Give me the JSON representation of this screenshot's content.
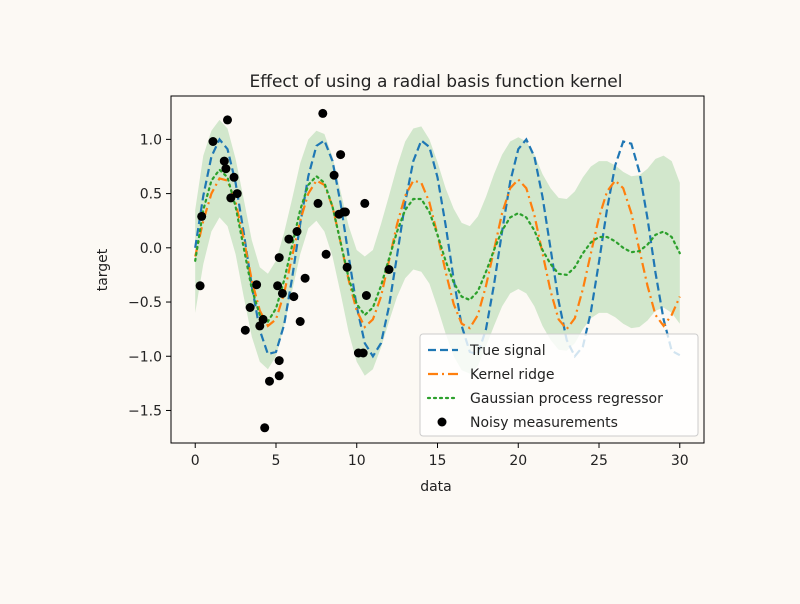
{
  "chart_data": {
    "type": "line",
    "title": "Effect of using a radial basis function kernel",
    "xlabel": "data",
    "ylabel": "target",
    "xlim": [
      -1.5,
      31.5
    ],
    "ylim": [
      -1.8,
      1.4
    ],
    "x_ticks": [
      0,
      5,
      10,
      15,
      20,
      25,
      30
    ],
    "x_tick_labels": [
      "0",
      "5",
      "10",
      "15",
      "20",
      "25",
      "30"
    ],
    "y_ticks": [
      -1.5,
      -1.0,
      -0.5,
      0.0,
      0.5,
      1.0
    ],
    "y_tick_labels": [
      "−1.5",
      "−1.0",
      "−0.5",
      "0.0",
      "0.5",
      "1.0"
    ],
    "grid": false,
    "legend_position": "lower right",
    "series": [
      {
        "name": "True signal",
        "color": "#1f77b4",
        "style": "dashed",
        "x": [
          0.0,
          0.5,
          1.0,
          1.5,
          2.0,
          2.5,
          3.0,
          3.5,
          4.0,
          4.5,
          5.0,
          5.5,
          6.0,
          6.5,
          7.0,
          7.5,
          8.0,
          8.5,
          9.0,
          9.5,
          10.0,
          10.5,
          11.0,
          11.5,
          12.0,
          12.5,
          13.0,
          13.5,
          14.0,
          14.5,
          15.0,
          15.5,
          16.0,
          16.5,
          17.0,
          17.5,
          18.0,
          18.5,
          19.0,
          19.5,
          20.0,
          20.5,
          21.0,
          21.5,
          22.0,
          22.5,
          23.0,
          23.5,
          24.0,
          24.5,
          25.0,
          25.5,
          26.0,
          26.5,
          27.0,
          27.5,
          28.0,
          28.5,
          29.0,
          29.5,
          30.0
        ],
        "y": [
          0.0,
          0.48,
          0.84,
          1.0,
          0.91,
          0.6,
          0.14,
          -0.35,
          -0.76,
          -0.98,
          -0.96,
          -0.71,
          -0.28,
          0.22,
          0.66,
          0.94,
          0.99,
          0.8,
          0.41,
          -0.08,
          -0.54,
          -0.88,
          -1.0,
          -0.88,
          -0.54,
          -0.07,
          0.42,
          0.8,
          0.99,
          0.93,
          0.65,
          0.21,
          -0.29,
          -0.72,
          -0.96,
          -0.98,
          -0.75,
          -0.34,
          0.15,
          0.61,
          0.91,
          1.0,
          0.84,
          0.47,
          -0.01,
          -0.49,
          -0.85,
          -1.0,
          -0.91,
          -0.59,
          -0.13,
          0.36,
          0.76,
          0.98,
          0.96,
          0.7,
          0.27,
          -0.23,
          -0.66,
          -0.95,
          -0.99
        ]
      },
      {
        "name": "Kernel ridge",
        "color": "#ff7f0e",
        "style": "dashdot",
        "x": [
          0.0,
          0.5,
          1.0,
          1.5,
          2.0,
          2.5,
          3.0,
          3.5,
          4.0,
          4.5,
          5.0,
          5.5,
          6.0,
          6.5,
          7.0,
          7.5,
          8.0,
          8.5,
          9.0,
          9.5,
          10.0,
          10.5,
          11.0,
          11.5,
          12.0,
          12.5,
          13.0,
          13.5,
          14.0,
          14.5,
          15.0,
          15.5,
          16.0,
          16.5,
          17.0,
          17.5,
          18.0,
          18.5,
          19.0,
          19.5,
          20.0,
          20.5,
          21.0,
          21.5,
          22.0,
          22.5,
          23.0,
          23.5,
          24.0,
          24.5,
          25.0,
          25.5,
          26.0,
          26.5,
          27.0,
          27.5,
          28.0,
          28.5,
          29.0,
          29.5,
          30.0
        ],
        "y": [
          -0.08,
          0.25,
          0.5,
          0.64,
          0.62,
          0.42,
          0.08,
          -0.3,
          -0.58,
          -0.72,
          -0.66,
          -0.42,
          -0.08,
          0.25,
          0.5,
          0.62,
          0.58,
          0.38,
          0.05,
          -0.3,
          -0.58,
          -0.73,
          -0.66,
          -0.45,
          -0.12,
          0.22,
          0.48,
          0.62,
          0.6,
          0.42,
          0.12,
          -0.22,
          -0.52,
          -0.7,
          -0.74,
          -0.62,
          -0.35,
          -0.02,
          0.32,
          0.55,
          0.63,
          0.55,
          0.3,
          -0.05,
          -0.4,
          -0.66,
          -0.75,
          -0.65,
          -0.38,
          -0.05,
          0.28,
          0.52,
          0.62,
          0.55,
          0.32,
          -0.02,
          -0.35,
          -0.62,
          -0.72,
          -0.62,
          -0.45
        ]
      },
      {
        "name": "Gaussian process regressor",
        "color": "#2ca02c",
        "style": "dotted",
        "x": [
          0.0,
          0.5,
          1.0,
          1.5,
          2.0,
          2.5,
          3.0,
          3.5,
          4.0,
          4.5,
          5.0,
          5.5,
          6.0,
          6.5,
          7.0,
          7.5,
          8.0,
          8.5,
          9.0,
          9.5,
          10.0,
          10.5,
          11.0,
          11.5,
          12.0,
          12.5,
          13.0,
          13.5,
          14.0,
          14.5,
          15.0,
          15.5,
          16.0,
          16.5,
          17.0,
          17.5,
          18.0,
          18.5,
          19.0,
          19.5,
          20.0,
          20.5,
          21.0,
          21.5,
          22.0,
          22.5,
          23.0,
          23.5,
          24.0,
          24.5,
          25.0,
          25.5,
          26.0,
          26.5,
          27.0,
          27.5,
          28.0,
          28.5,
          29.0,
          29.5,
          30.0
        ],
        "y": [
          -0.12,
          0.35,
          0.62,
          0.72,
          0.65,
          0.38,
          0.0,
          -0.38,
          -0.62,
          -0.68,
          -0.56,
          -0.3,
          0.02,
          0.35,
          0.58,
          0.66,
          0.6,
          0.38,
          0.05,
          -0.28,
          -0.52,
          -0.62,
          -0.55,
          -0.35,
          -0.1,
          0.15,
          0.35,
          0.45,
          0.45,
          0.33,
          0.12,
          -0.12,
          -0.32,
          -0.45,
          -0.48,
          -0.4,
          -0.22,
          -0.02,
          0.16,
          0.28,
          0.32,
          0.28,
          0.16,
          -0.02,
          -0.15,
          -0.24,
          -0.25,
          -0.18,
          -0.05,
          0.05,
          0.1,
          0.1,
          0.06,
          0.0,
          -0.04,
          -0.03,
          0.03,
          0.12,
          0.15,
          0.1,
          -0.05
        ]
      }
    ],
    "confidence_band": {
      "color": "#2ca02c",
      "opacity": 0.2,
      "x": [
        0.0,
        0.5,
        1.0,
        1.5,
        2.0,
        2.5,
        3.0,
        3.5,
        4.0,
        4.5,
        5.0,
        5.5,
        6.0,
        6.5,
        7.0,
        7.5,
        8.0,
        8.5,
        9.0,
        9.5,
        10.0,
        10.5,
        11.0,
        11.5,
        12.0,
        12.5,
        13.0,
        13.5,
        14.0,
        14.5,
        15.0,
        15.5,
        16.0,
        16.5,
        17.0,
        17.5,
        18.0,
        18.5,
        19.0,
        19.5,
        20.0,
        20.5,
        21.0,
        21.5,
        22.0,
        22.5,
        23.0,
        23.5,
        24.0,
        24.5,
        25.0,
        25.5,
        26.0,
        26.5,
        27.0,
        27.5,
        28.0,
        28.5,
        29.0,
        29.5,
        30.0
      ],
      "lower": [
        -0.6,
        -0.15,
        0.15,
        0.28,
        0.2,
        -0.06,
        -0.45,
        -0.82,
        -1.05,
        -1.12,
        -1.0,
        -0.72,
        -0.4,
        -0.06,
        0.18,
        0.25,
        0.15,
        -0.08,
        -0.42,
        -0.78,
        -1.05,
        -1.18,
        -1.12,
        -0.92,
        -0.68,
        -0.45,
        -0.28,
        -0.2,
        -0.22,
        -0.33,
        -0.55,
        -0.79,
        -1.0,
        -1.13,
        -1.16,
        -1.09,
        -0.91,
        -0.72,
        -0.54,
        -0.42,
        -0.38,
        -0.42,
        -0.54,
        -0.72,
        -0.85,
        -0.94,
        -0.95,
        -0.88,
        -0.75,
        -0.65,
        -0.6,
        -0.6,
        -0.64,
        -0.7,
        -0.74,
        -0.73,
        -0.67,
        -0.58,
        -0.55,
        -0.6,
        -0.7
      ],
      "upper": [
        0.35,
        0.85,
        1.08,
        1.18,
        1.1,
        0.82,
        0.45,
        0.07,
        -0.18,
        -0.24,
        -0.12,
        0.14,
        0.45,
        0.78,
        1.0,
        1.08,
        1.05,
        0.84,
        0.52,
        0.2,
        -0.02,
        -0.08,
        -0.02,
        0.22,
        0.48,
        0.75,
        0.98,
        1.1,
        1.12,
        1.0,
        0.79,
        0.55,
        0.36,
        0.23,
        0.2,
        0.29,
        0.47,
        0.68,
        0.86,
        0.98,
        1.02,
        0.98,
        0.86,
        0.68,
        0.55,
        0.46,
        0.45,
        0.52,
        0.65,
        0.75,
        0.8,
        0.8,
        0.76,
        0.7,
        0.66,
        0.67,
        0.73,
        0.82,
        0.85,
        0.8,
        0.6
      ]
    },
    "scatter": {
      "name": "Noisy measurements",
      "color": "#000000",
      "x": [
        0.3,
        0.4,
        1.1,
        1.8,
        1.9,
        2.0,
        2.2,
        2.4,
        2.6,
        3.1,
        3.4,
        3.8,
        4.0,
        4.2,
        4.3,
        4.6,
        5.1,
        5.2,
        5.2,
        5.2,
        5.4,
        5.8,
        6.1,
        6.3,
        6.5,
        6.8,
        7.6,
        7.9,
        8.1,
        8.6,
        8.9,
        9.0,
        9.2,
        9.3,
        9.4,
        10.1,
        10.4,
        10.5,
        10.6,
        12.0
      ],
      "y": [
        -0.35,
        0.29,
        0.98,
        0.8,
        0.73,
        1.18,
        0.46,
        0.65,
        0.5,
        -0.76,
        -0.55,
        -0.34,
        -0.72,
        -0.66,
        -1.66,
        -1.23,
        -0.35,
        -0.09,
        -1.04,
        -1.18,
        -0.42,
        0.08,
        -0.45,
        0.15,
        -0.68,
        -0.28,
        0.41,
        1.24,
        -0.06,
        0.67,
        0.31,
        0.86,
        0.33,
        0.33,
        -0.18,
        -0.97,
        -0.97,
        0.41,
        -0.44,
        -0.2
      ]
    }
  }
}
